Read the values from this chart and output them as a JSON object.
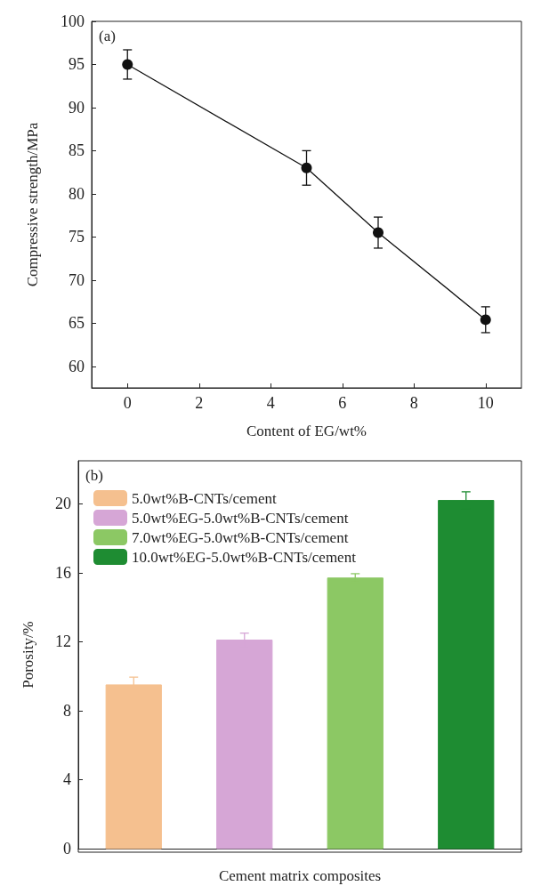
{
  "chart_data": [
    {
      "type": "line",
      "xlabel": "Content of EG/wt%",
      "ylabel": "Compressive strength/MPa",
      "annotations": [
        "(a)"
      ],
      "x": [
        0,
        5,
        7,
        10
      ],
      "values": [
        95,
        83,
        75.5,
        65.4
      ],
      "errors": [
        1.7,
        2,
        1.8,
        1.5
      ],
      "color": "#111111",
      "marker": "circle",
      "line_style": "solid",
      "xlim": [
        -1,
        11
      ],
      "xticks": [
        0,
        2,
        4,
        6,
        8,
        10
      ],
      "ylim": [
        57.5,
        100
      ],
      "yticks": [
        60,
        65,
        70,
        75,
        80,
        85,
        90,
        95,
        100
      ],
      "grid": false,
      "legend": false
    },
    {
      "type": "bar",
      "xlabel": "Cement matrix composites",
      "ylabel": "Porosity/%",
      "annotations": [
        "(b)"
      ],
      "categories": [
        null,
        null,
        null,
        null
      ],
      "series": [
        {
          "name": "5.0wt%B-CNTs/cement",
          "color": "#f5c08f",
          "values": [
            9.5,
            null,
            null,
            null
          ],
          "errors": [
            0.45,
            null,
            null,
            null
          ]
        },
        {
          "name": "5.0wt%EG-5.0wt%B-CNTs/cement",
          "color": "#d6a6d6",
          "values": [
            null,
            12.1,
            null,
            null
          ],
          "errors": [
            null,
            0.4,
            null,
            null
          ]
        },
        {
          "name": "7.0wt%EG-5.0wt%B-CNTs/cement",
          "color": "#8cc864",
          "values": [
            null,
            null,
            15.7,
            null
          ],
          "errors": [
            null,
            null,
            0.25,
            null
          ]
        },
        {
          "name": "10.0wt%EG-5.0wt%B-CNTs/cement",
          "color": "#1e8c32",
          "values": [
            null,
            null,
            null,
            20.2
          ],
          "errors": [
            null,
            null,
            null,
            0.5
          ]
        }
      ],
      "ylim": [
        0,
        22.5
      ],
      "yticks": [
        0,
        4,
        8,
        12,
        16,
        20
      ],
      "grid": false,
      "legend": "top left"
    }
  ]
}
